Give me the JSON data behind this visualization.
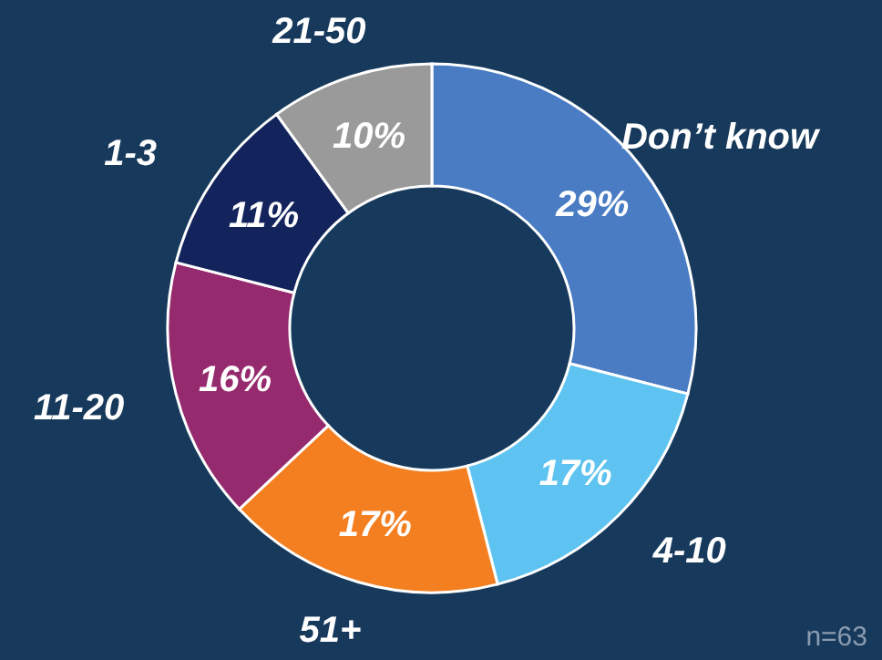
{
  "chart_data": {
    "type": "donut",
    "categories": [
      "Don’t know",
      "4-10",
      "51+",
      "11-20",
      "1-3",
      "21-50"
    ],
    "values": [
      29,
      17,
      17,
      16,
      11,
      10
    ],
    "colors": [
      "#4a7cc4",
      "#5ec3f0",
      "#f47f20",
      "#962a6e",
      "#13245c",
      "#9a9a9a"
    ],
    "value_labels": [
      "29%",
      "17%",
      "17%",
      "16%",
      "11%",
      "10%"
    ],
    "annotations": [
      "n=63"
    ]
  }
}
